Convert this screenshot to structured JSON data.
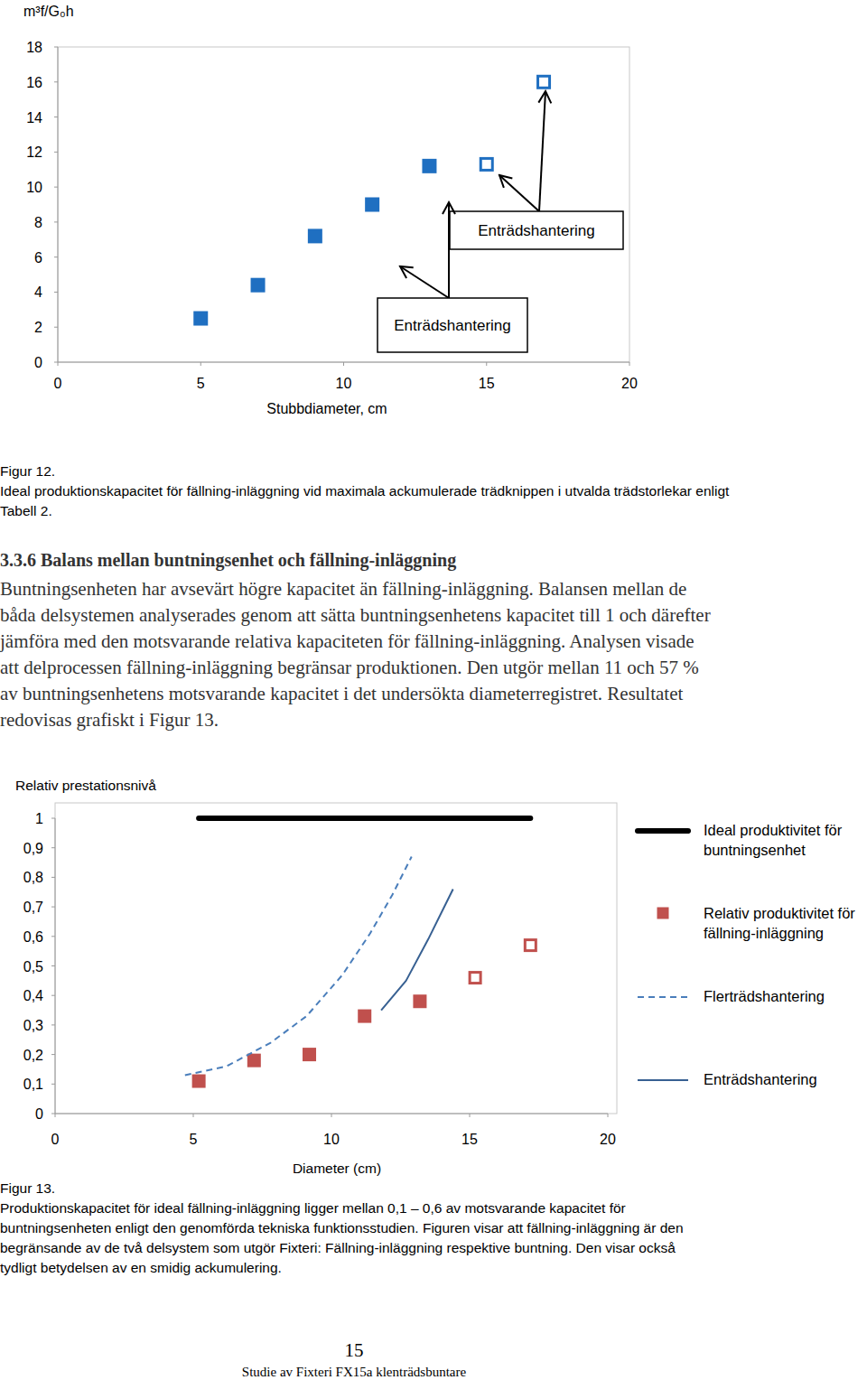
{
  "chart_data": [
    {
      "type": "scatter",
      "y_label": "m³f/G₀h",
      "x_label": "Stubbdiameter, cm",
      "xlim": [
        0,
        20
      ],
      "xticks": [
        0,
        5,
        10,
        15,
        20
      ],
      "ylim": [
        0,
        18
      ],
      "yticks": [
        0,
        2,
        4,
        6,
        8,
        10,
        12,
        14,
        16,
        18
      ],
      "grid": false,
      "series": [
        {
          "color": "#1f6fc1",
          "marker": "square",
          "x": [
            5,
            7,
            9,
            11,
            13
          ],
          "values": [
            2.5,
            4.4,
            7.2,
            9.0,
            11.2
          ]
        },
        {
          "color": "#1f6fc1",
          "marker": "square-open",
          "x": [
            15,
            17
          ],
          "values": [
            11.3,
            16.0
          ]
        }
      ],
      "annotations": [
        {
          "text": "Enträdshantering"
        },
        {
          "text": "Enträdshantering"
        }
      ]
    },
    {
      "type": "line",
      "title": "Relativ prestationsnivå",
      "x_label": "Diameter (cm)",
      "xlim": [
        0,
        20
      ],
      "xticks": [
        0,
        5,
        10,
        15,
        20
      ],
      "ylim": [
        0,
        1
      ],
      "yticks": [
        0,
        {
          "value": 0.1,
          "label": "0,1"
        },
        {
          "value": 0.2,
          "label": "0,2"
        },
        {
          "value": 0.3,
          "label": "0,3"
        },
        {
          "value": 0.4,
          "label": "0,4"
        },
        {
          "value": 0.5,
          "label": "0,5"
        },
        {
          "value": 0.6,
          "label": "0,6"
        },
        {
          "value": 0.7,
          "label": "0,7"
        },
        {
          "value": 0.8,
          "label": "0,8"
        },
        {
          "value": 0.9,
          "label": "0,9"
        },
        1
      ],
      "grid": false,
      "legend": "right",
      "series": [
        {
          "name": "Ideal produktivitet för buntningsenhet",
          "color": "#000000",
          "line_style": "bold",
          "marker": "none",
          "x": [
            5.2,
            17.2
          ],
          "values": [
            1,
            1
          ]
        },
        {
          "name": "Relativ produktivitet för fällning-inläggning",
          "type": "scatter",
          "color": "#c0504d",
          "marker": "square",
          "x": [
            5.2,
            7.2,
            9.2,
            11.2,
            13.2
          ],
          "values": [
            0.11,
            0.18,
            0.2,
            0.33,
            0.38
          ]
        },
        {
          "type": "scatter",
          "color": "#c0504d",
          "marker": "square-open",
          "x": [
            15.2,
            17.2
          ],
          "values": [
            0.46,
            0.57
          ]
        },
        {
          "name": "Flerträdshantering",
          "color": "#4a7ebb",
          "line_style": "dashed",
          "marker": "none",
          "x": [
            4.7,
            6.2,
            7.8,
            9.1,
            10.4,
            11.4,
            12.2,
            12.9
          ],
          "values": [
            0.13,
            0.16,
            0.24,
            0.33,
            0.47,
            0.61,
            0.74,
            0.87
          ]
        },
        {
          "name": "Enträdshantering",
          "color": "#376092",
          "line_style": "solid",
          "marker": "none",
          "x": [
            11.8,
            12.7,
            13.5,
            14.4
          ],
          "values": [
            0.35,
            0.45,
            0.59,
            0.76
          ]
        }
      ]
    }
  ],
  "page": {
    "figure_12": {
      "label": "Figur 12.",
      "caption": "Ideal produktionskapacitet för fällning-inläggning vid maximala ackumulerade trädknippen i utvalda trädstorlekar enligt Tabell 2."
    },
    "section": {
      "heading": "3.3.6 Balans mellan buntningsenhet och fällning-inläggning",
      "text": "Buntningsenheten har avsevärt högre kapacitet än fällning-inläggning. Balansen mellan de båda delsystemen analyserades genom att sätta buntningsenhetens kapacitet till 1 och därefter jämföra med den motsvarande relativa kapaciteten för fällning-inläggning. Analysen visade att delprocessen fällning-inläggning begränsar produktionen. Den utgör mellan 11 och 57 % av buntningsenhetens motsvarande kapacitet i det undersökta diameterregistret. Resultatet redovisas grafiskt i Figur 13."
    },
    "figure_13": {
      "label": "Figur 13.",
      "caption": "Produktionskapacitet för ideal fällning-inläggning ligger mellan 0,1 – 0,6 av motsvarande kapacitet för buntningsenheten enligt den genomförda tekniska funktionsstudien. Figuren visar att fällning-inläggning är den begränsande av de två delsystem som utgör Fixteri: Fällning-inläggning respektive buntning. Den visar också tydligt betydelsen av en smidig ackumulering."
    },
    "page_number": "15",
    "footer": "Studie av Fixteri FX15a klenträdsbuntare"
  }
}
